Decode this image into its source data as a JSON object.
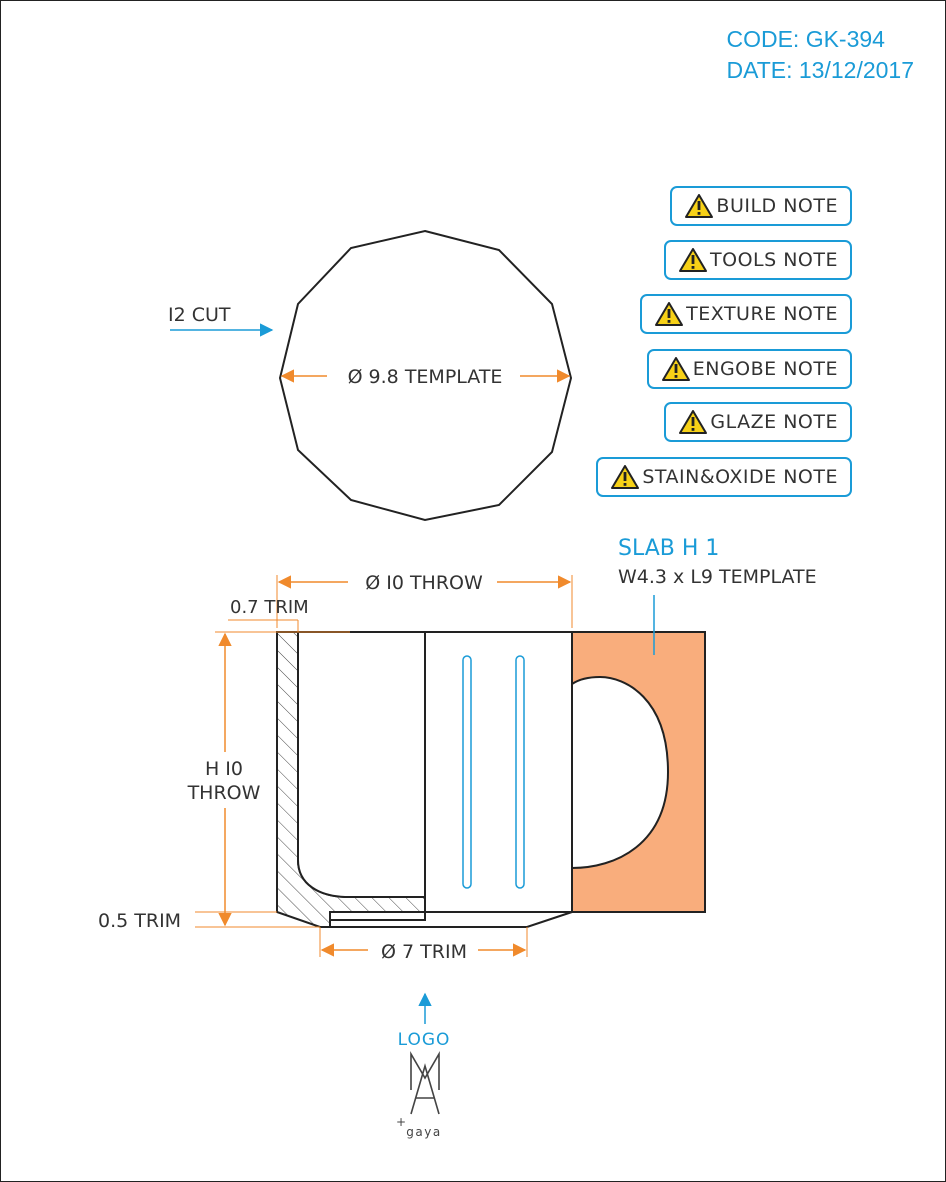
{
  "header": {
    "code": "CODE: GK-394",
    "date": "DATE: 13/12/2017"
  },
  "notes": [
    {
      "label": "BUILD NOTE",
      "icon": "warning-icon"
    },
    {
      "label": "TOOLS NOTE",
      "icon": "warning-icon"
    },
    {
      "label": "TEXTURE NOTE",
      "icon": "warning-icon"
    },
    {
      "label": "ENGOBE NOTE",
      "icon": "warning-icon"
    },
    {
      "label": "GLAZE NOTE",
      "icon": "warning-icon"
    },
    {
      "label": "STAIN&OXIDE NOTE",
      "icon": "warning-icon"
    }
  ],
  "top_view": {
    "cut_label": "I2 CUT",
    "diameter_label": "Ø 9.8 TEMPLATE"
  },
  "handle": {
    "title": "SLAB H 1",
    "subtitle": "W4.3 x L9 TEMPLATE"
  },
  "section": {
    "top_diameter": "Ø I0 THROW",
    "wall_trim": "0.7 TRIM",
    "height_line1": "H I0",
    "height_line2": "THROW",
    "base_trim": "0.5 TRIM",
    "foot_diameter": "Ø 7 TRIM"
  },
  "logo": {
    "label": "LOGO",
    "mark": "MA",
    "sub": "gaya",
    "plus": "+"
  },
  "colors": {
    "accent_blue": "#1a9bd7",
    "dimension_orange": "#f08a2c",
    "handle_fill": "#f9ad7c",
    "line": "#222222"
  }
}
